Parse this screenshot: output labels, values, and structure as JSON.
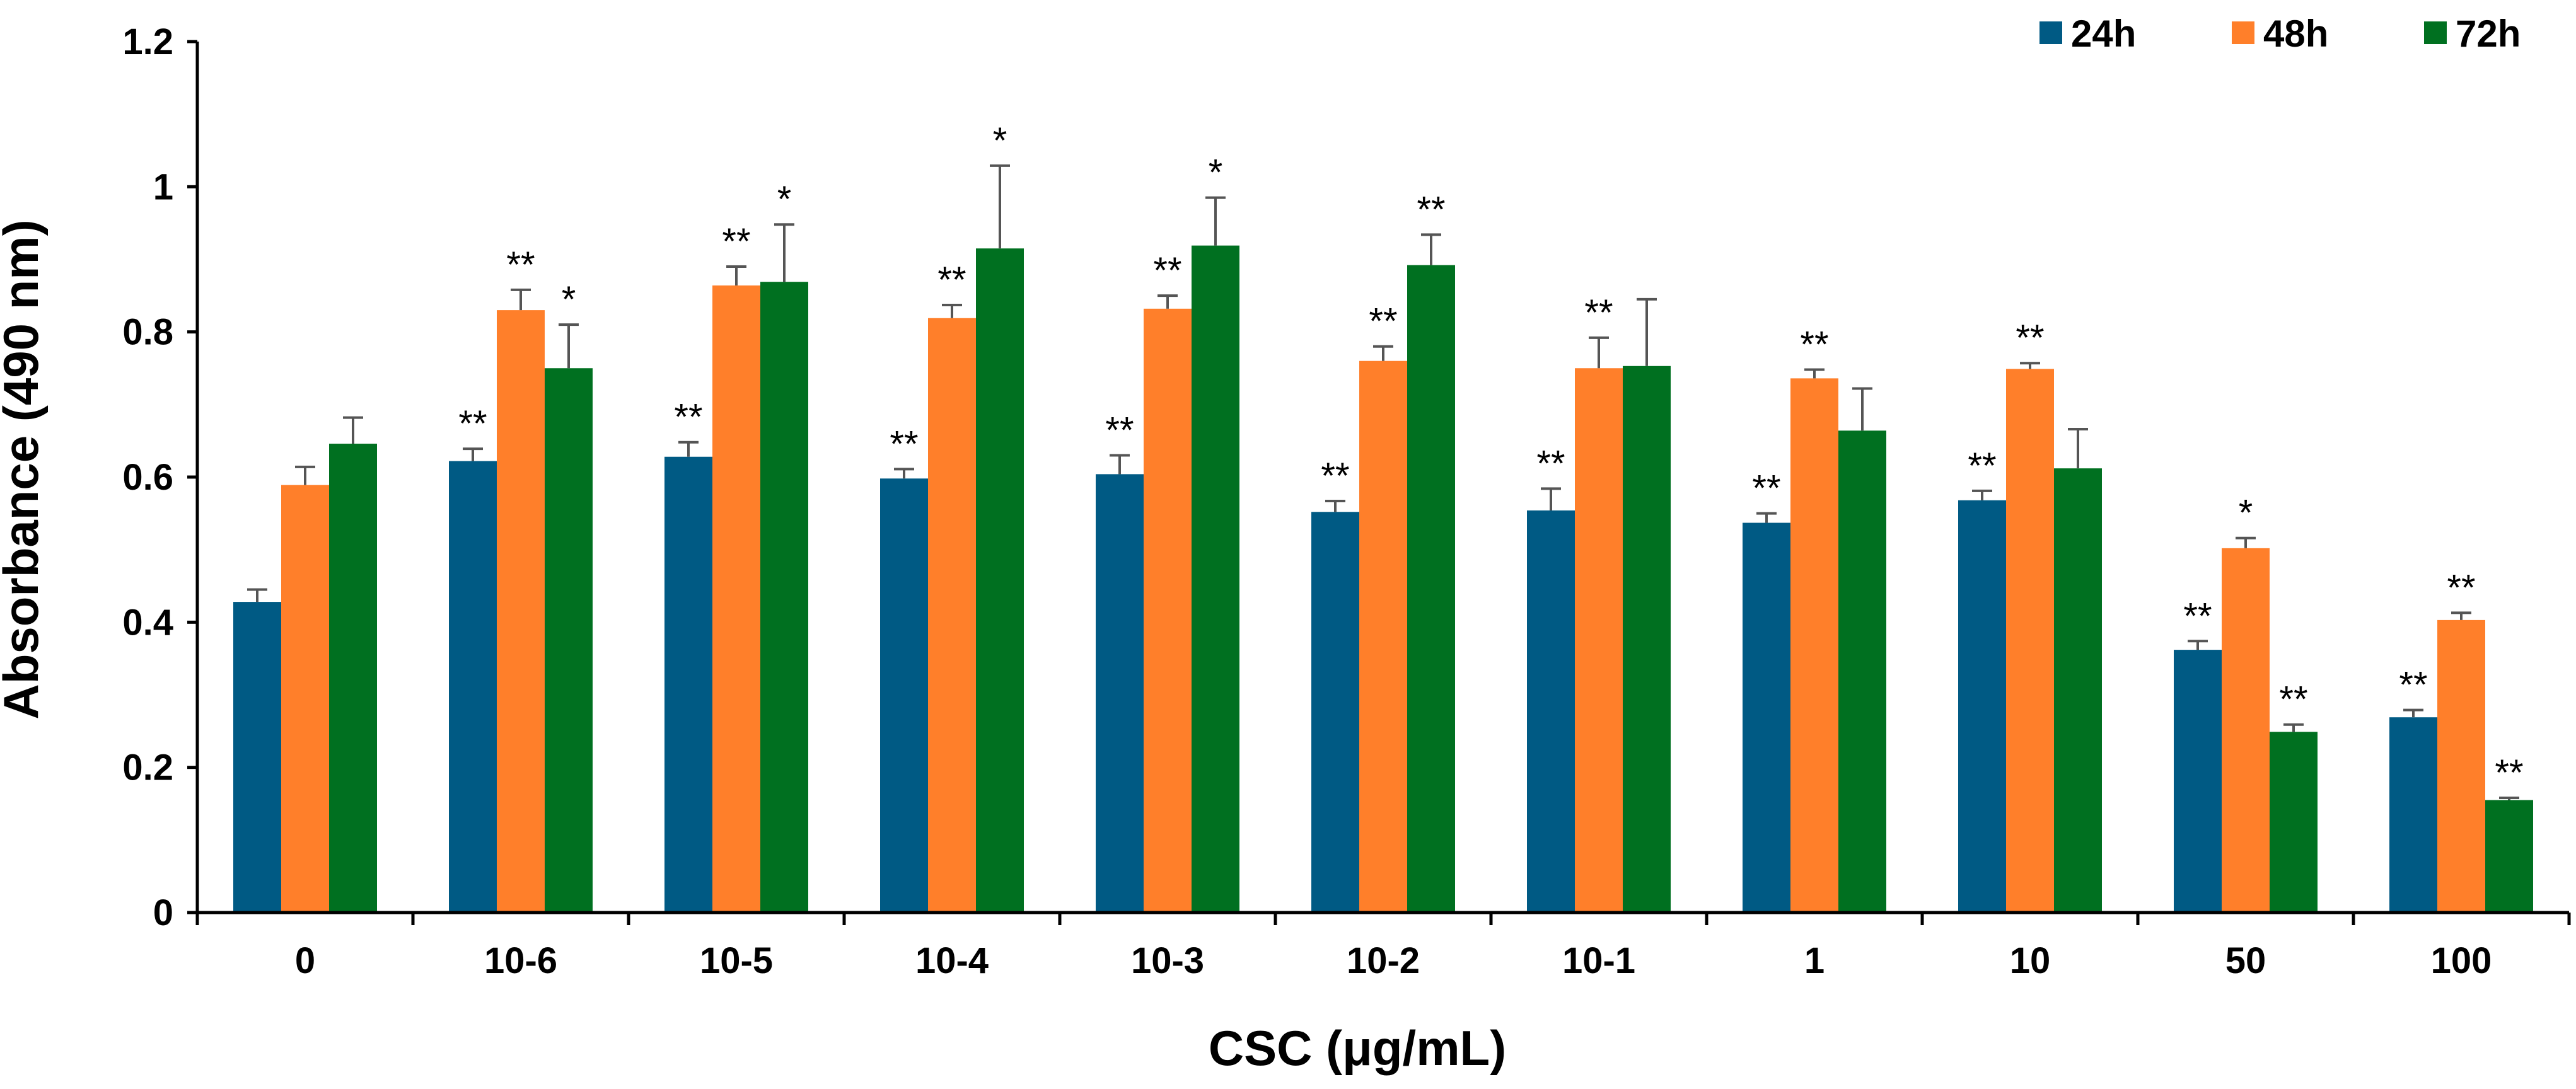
{
  "chart_data": {
    "type": "bar",
    "title": "",
    "xlabel": "CSC (μg/mL)",
    "ylabel": "Absorbance (490 nm)",
    "ylim": [
      0,
      1.2
    ],
    "yticks": [
      "0",
      "0.2",
      "0.4",
      "0.6",
      "0.8",
      "1",
      "1.2"
    ],
    "ytick_values": [
      0,
      0.2,
      0.4,
      0.6,
      0.8,
      1.0,
      1.2
    ],
    "grid": false,
    "legend_position": "top-right",
    "categories": [
      "0",
      "10-6",
      "10-5",
      "10-4",
      "10-3",
      "10-2",
      "10-1",
      "1",
      "10",
      "50",
      "100"
    ],
    "series": [
      {
        "name": "24h",
        "color": "#005A84",
        "values": [
          0.428,
          0.622,
          0.628,
          0.598,
          0.604,
          0.552,
          0.554,
          0.537,
          0.568,
          0.362,
          0.269
        ],
        "errors": [
          0.017,
          0.017,
          0.02,
          0.013,
          0.026,
          0.015,
          0.03,
          0.013,
          0.013,
          0.012,
          0.01
        ],
        "significance": [
          "",
          "**",
          "**",
          "**",
          "**",
          "**",
          "**",
          "**",
          "**",
          "**",
          "**"
        ]
      },
      {
        "name": "48h",
        "color": "#FF7F2A",
        "values": [
          0.589,
          0.83,
          0.864,
          0.819,
          0.832,
          0.76,
          0.75,
          0.736,
          0.749,
          0.502,
          0.403
        ],
        "errors": [
          0.025,
          0.028,
          0.026,
          0.018,
          0.018,
          0.02,
          0.042,
          0.012,
          0.008,
          0.014,
          0.01
        ],
        "significance": [
          "",
          "**",
          "**",
          "**",
          "**",
          "**",
          "**",
          "**",
          "**",
          "*",
          "**"
        ]
      },
      {
        "name": "72h",
        "color": "#007020",
        "values": [
          0.646,
          0.75,
          0.869,
          0.915,
          0.919,
          0.892,
          0.753,
          0.664,
          0.612,
          0.249,
          0.155
        ],
        "errors": [
          0.036,
          0.06,
          0.079,
          0.114,
          0.066,
          0.042,
          0.092,
          0.058,
          0.054,
          0.01,
          0.003
        ],
        "significance": [
          "",
          "*",
          "*",
          "*",
          "*",
          "**",
          "",
          "",
          "",
          "**",
          "**"
        ]
      }
    ]
  }
}
